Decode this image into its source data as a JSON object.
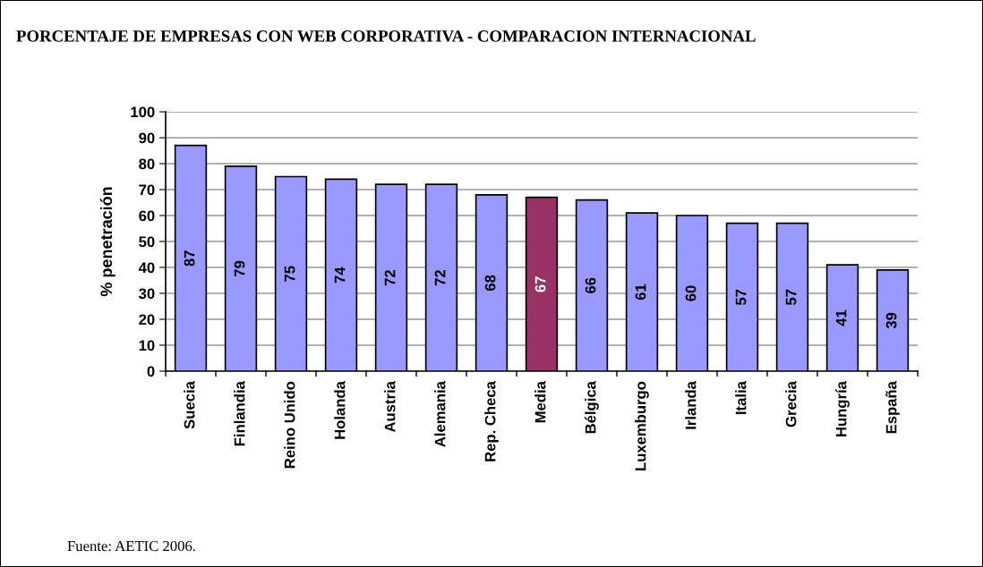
{
  "chart_data": {
    "type": "bar",
    "title": "PORCENTAJE DE EMPRESAS CON WEB CORPORATIVA - COMPARACION INTERNACIONAL",
    "ylabel": "% penetración",
    "categories": [
      "Suecia",
      "Finlandia",
      "Reino Unido",
      "Holanda",
      "Austria",
      "Alemania",
      "Rep. Checa",
      "Media",
      "Bélgica",
      "Luxemburgo",
      "Irlanda",
      "Italia",
      "Grecia",
      "Hungría",
      "España"
    ],
    "values": [
      87,
      79,
      75,
      74,
      72,
      72,
      68,
      67,
      66,
      61,
      60,
      57,
      57,
      41,
      39
    ],
    "colors": [
      "#9999ff",
      "#9999ff",
      "#9999ff",
      "#9999ff",
      "#9999ff",
      "#9999ff",
      "#9999ff",
      "#993366",
      "#9999ff",
      "#9999ff",
      "#9999ff",
      "#9999ff",
      "#9999ff",
      "#9999ff",
      "#9999ff"
    ],
    "ylim": [
      0,
      100
    ],
    "yticks": [
      0,
      10,
      20,
      30,
      40,
      50,
      60,
      70,
      80,
      90,
      100
    ],
    "grid": "y",
    "data_labels": true,
    "annotations": [
      "Fuente: AETIC 2006."
    ]
  }
}
